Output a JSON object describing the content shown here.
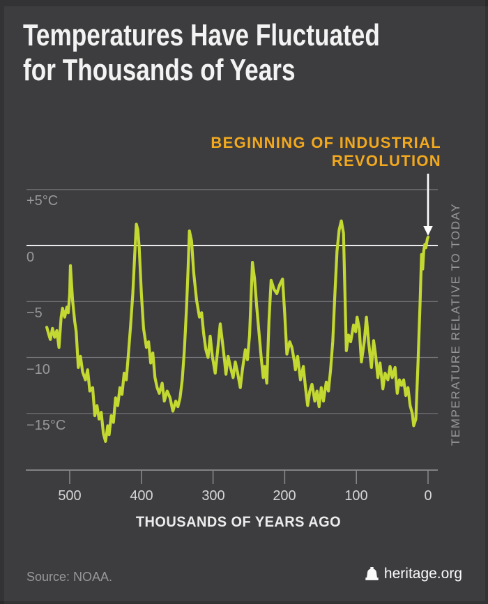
{
  "title": {
    "line1": "Temperatures Have Fluctuated",
    "line2": "for Thousands of Years"
  },
  "annotation": {
    "line1": "BEGINNING OF INDUSTRIAL",
    "line2": "REVOLUTION"
  },
  "colors": {
    "background": "#3d3d40",
    "line": "#c3d831",
    "accent_orange": "#f2a91d",
    "grid": "#76777a",
    "zero_line": "#ececec",
    "axis": "#98989a",
    "tick": "#8a8b8d",
    "arrow": "#ffffff",
    "text_light": "#f3f3f3",
    "text_muted": "#97979a"
  },
  "chart_data": {
    "type": "line",
    "title": "Temperatures Have Fluctuated for Thousands of Years",
    "xlabel": "THOUSANDS OF YEARS AGO",
    "ylabel_right": "TEMPERATURE RELATIVE TO TODAY",
    "line_color": "#c3d831",
    "grid": "on",
    "x_axis": {
      "ticks": [
        500,
        400,
        300,
        200,
        100,
        0
      ],
      "tick_labels": [
        "500",
        "400",
        "300",
        "200",
        "100",
        "0"
      ],
      "direction": "reversed",
      "unit": "thousands of years ago"
    },
    "y_axis": {
      "ticks": [
        5,
        0,
        -5,
        -10,
        -15
      ],
      "tick_labels": [
        "+5°C",
        "0",
        "−5",
        "−10",
        "−15°C"
      ],
      "range": [
        -19,
        7
      ],
      "unit": "°C relative to today"
    },
    "series": [
      {
        "name": "Temperature relative to today (°C)",
        "x_kyr_ago": [
          532,
          529,
          527,
          524,
          521,
          518,
          515,
          512,
          510,
          507,
          504,
          502,
          500,
          499,
          496,
          493,
          491,
          488,
          485,
          482,
          478,
          475,
          472,
          468,
          465,
          462,
          459,
          456,
          453,
          450,
          447,
          445,
          442,
          439,
          436,
          433,
          430,
          427,
          424,
          421,
          418,
          415,
          412,
          409,
          407,
          405,
          403,
          400,
          397,
          393,
          390,
          387,
          384,
          381,
          378,
          375,
          371,
          368,
          364,
          360,
          356,
          352,
          349,
          346,
          343,
          340,
          337,
          335,
          333,
          330,
          327,
          323,
          319,
          316,
          313,
          310,
          307,
          304,
          301,
          297,
          294,
          290,
          287,
          284,
          282,
          279,
          276,
          272,
          269,
          266,
          262,
          259,
          255,
          252,
          249,
          245,
          242,
          239,
          236,
          233,
          230,
          228,
          225,
          222,
          219,
          215,
          211,
          207,
          203,
          200,
          197,
          193,
          190,
          187,
          185,
          182,
          178,
          174,
          171,
          168,
          165,
          162,
          158,
          155,
          152,
          149,
          146,
          142,
          139,
          136,
          133,
          130,
          127,
          124,
          121,
          118,
          116,
          114,
          111,
          108,
          104,
          101,
          99,
          96,
          93,
          89,
          86,
          83,
          79,
          76,
          73,
          70,
          67,
          63,
          60,
          56,
          53,
          50,
          46,
          43,
          40,
          37,
          34,
          31,
          28,
          25,
          22,
          20,
          17,
          14,
          11,
          9,
          7.5,
          6,
          4.5,
          3,
          1,
          0
        ],
        "temp_c": [
          -7.3,
          -8.0,
          -8.4,
          -7.4,
          -8.2,
          -7.6,
          -9.1,
          -6.4,
          -5.6,
          -6.4,
          -5.5,
          -6.0,
          -4.3,
          -1.8,
          -4.9,
          -6.8,
          -7.7,
          -10.9,
          -9.9,
          -11.3,
          -12.0,
          -11.1,
          -13.0,
          -12.7,
          -15.2,
          -14.3,
          -15.5,
          -14.9,
          -16.8,
          -17.5,
          -16.1,
          -16.9,
          -15.2,
          -15.8,
          -13.6,
          -14.3,
          -12.7,
          -13.3,
          -11.4,
          -12.0,
          -9.6,
          -7.1,
          -4.3,
          -0.5,
          1.9,
          1.4,
          -0.2,
          -4.3,
          -7.4,
          -9.1,
          -8.6,
          -10.5,
          -9.6,
          -11.8,
          -12.7,
          -13.2,
          -12.3,
          -13.9,
          -13.0,
          -13.6,
          -14.8,
          -13.9,
          -14.4,
          -13.6,
          -12.0,
          -9.3,
          -5.5,
          -2.4,
          1.3,
          0.4,
          -2.4,
          -4.9,
          -6.4,
          -6.0,
          -7.9,
          -9.3,
          -10.0,
          -8.1,
          -9.9,
          -11.4,
          -9.6,
          -7.0,
          -8.6,
          -10.2,
          -11.5,
          -9.9,
          -10.8,
          -11.8,
          -10.4,
          -11.3,
          -12.7,
          -11.1,
          -9.3,
          -10.2,
          -8.0,
          -1.5,
          -3.0,
          -5.5,
          -7.7,
          -9.9,
          -11.8,
          -10.8,
          -12.3,
          -6.8,
          -3.1,
          -3.9,
          -4.3,
          -3.5,
          -3.0,
          -6.1,
          -9.7,
          -8.6,
          -9.1,
          -10.2,
          -11.1,
          -9.9,
          -12.0,
          -10.8,
          -12.7,
          -14.3,
          -13.0,
          -12.4,
          -13.9,
          -13.0,
          -14.4,
          -12.7,
          -13.9,
          -12.2,
          -13.0,
          -11.1,
          -8.6,
          -4.3,
          -0.5,
          1.4,
          2.2,
          1.1,
          -4.3,
          -9.4,
          -8.0,
          -8.6,
          -7.1,
          -7.7,
          -6.4,
          -7.4,
          -10.4,
          -8.6,
          -6.4,
          -8.6,
          -10.9,
          -8.5,
          -9.9,
          -11.8,
          -10.5,
          -12.8,
          -11.4,
          -12.0,
          -10.8,
          -11.8,
          -10.9,
          -13.2,
          -12.0,
          -12.5,
          -12.0,
          -13.4,
          -12.7,
          -14.3,
          -15.0,
          -16.1,
          -15.5,
          -10.5,
          -4.9,
          -0.8,
          -2.1,
          -0.5,
          0.1,
          -0.2,
          0.6,
          0.75
        ]
      }
    ],
    "annotation": {
      "text": "BEGINNING OF INDUSTRIAL REVOLUTION",
      "points_at_kyr_ago": 0
    }
  },
  "footer": {
    "source": "Source: NOAA.",
    "brand": "heritage.org"
  }
}
